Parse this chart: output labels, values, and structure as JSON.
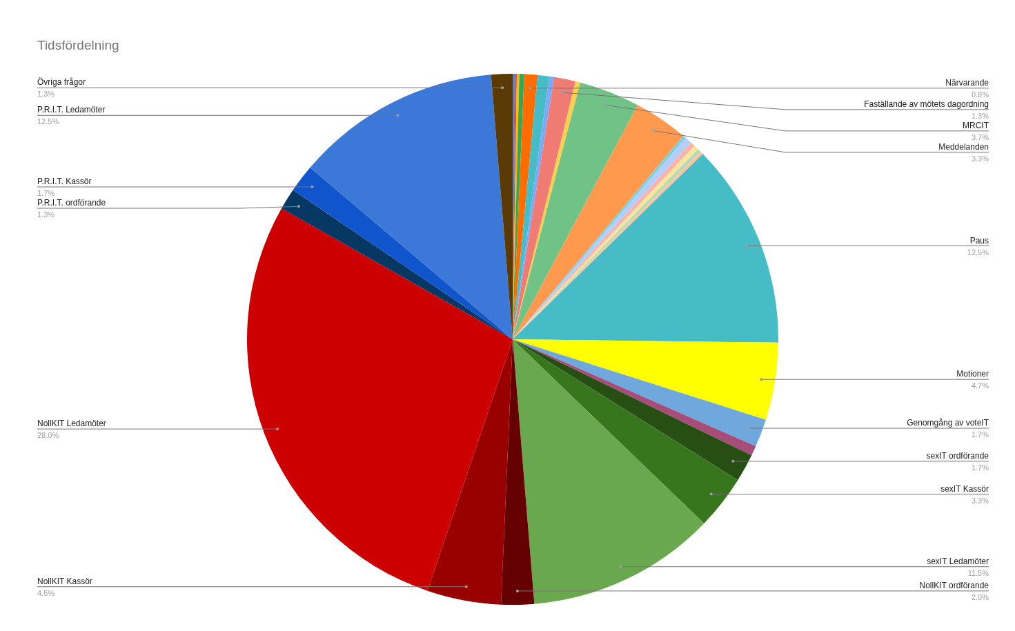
{
  "chart_data": {
    "type": "pie",
    "title": "Tidsfördelning",
    "categories": [
      null,
      null,
      null,
      null,
      "Närvarande",
      null,
      null,
      "Faställande av mötets dagordning",
      null,
      "MRCIT",
      "Meddelanden",
      null,
      null,
      null,
      null,
      null,
      null,
      "Paus",
      "Motioner",
      "Genomgång av voteIT",
      null,
      "sexIT ordförande",
      "sexIT Kassör",
      "sexIT Ledamöter",
      "NollKIT ordförande",
      "NollKIT Kassör",
      "NollKIT Ledamöter",
      "P.R.I.T. ordförande",
      "P.R.I.T. Kassör",
      "P.R.I.T. Ledamöter",
      "Övriga frågor"
    ],
    "values": [
      0.15,
      0.1,
      0.15,
      0.3,
      0.8,
      0.7,
      0.3,
      1.3,
      0.3,
      3.7,
      3.3,
      0.2,
      0.4,
      0.3,
      0.3,
      0.2,
      0.2,
      12.5,
      4.7,
      1.7,
      0.6,
      1.7,
      3.3,
      11.5,
      2.0,
      4.5,
      28.0,
      1.3,
      1.7,
      12.5,
      1.3
    ],
    "value_labels": [
      null,
      null,
      null,
      null,
      "0.8%",
      null,
      null,
      "1.3%",
      null,
      "3.7%",
      "3.3%",
      null,
      null,
      null,
      null,
      null,
      null,
      "12.5%",
      "4.7%",
      "1.7%",
      null,
      "1.7%",
      "3.3%",
      "11.5%",
      "2.0%",
      "4.5%",
      "28.0%",
      "1.3%",
      "1.7%",
      "12.5%",
      "1.3%"
    ],
    "colors": [
      "#4285f4",
      "#ea4335",
      "#fbbc04",
      "#34a853",
      "#ff6d01",
      "#46bdc6",
      "#7baaf7",
      "#f07b72",
      "#fcd04f",
      "#71c287",
      "#ff994d",
      "#7ed1d7",
      "#b3cefb",
      "#f7b4ae",
      "#fde49b",
      "#aedcba",
      "#ffc599",
      "#46bdc6",
      "#ffff00",
      "#6fa8dc",
      "#a64d79",
      "#274e13",
      "#38761d",
      "#6aa84f",
      "#660000",
      "#990000",
      "#cc0000",
      "#073763",
      "#1155cc",
      "#3c78d8",
      "#5b3b05"
    ],
    "legend": false
  }
}
